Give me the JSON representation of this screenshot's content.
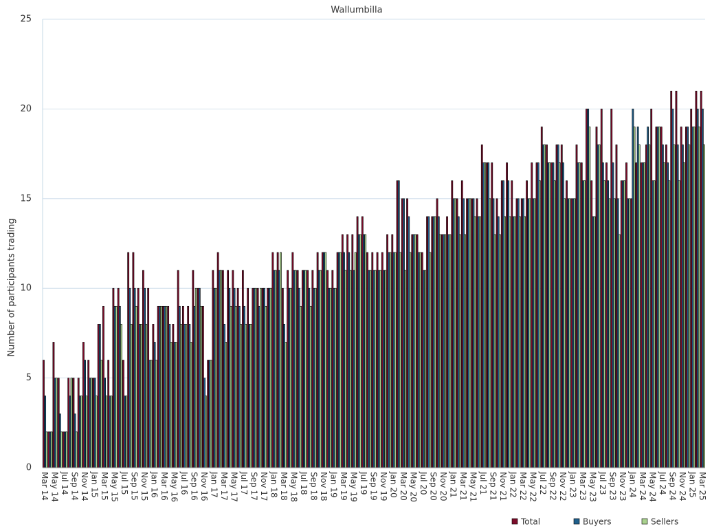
{
  "chart_data": {
    "type": "bar",
    "title": "Wallumbilla",
    "y_label": "Number of participants trading",
    "categories": [
      "Mar 14",
      null,
      "May 14",
      null,
      "Jul 14",
      null,
      "Sep 14",
      null,
      "Nov 14",
      null,
      "Jan 15",
      null,
      "Mar 15",
      null,
      "May 15",
      null,
      "Jul 15",
      null,
      "Sep 15",
      null,
      "Nov 15",
      null,
      "Jan 16",
      null,
      "Mar 16",
      null,
      "May 16",
      null,
      "Jul 16",
      null,
      "Sep 16",
      null,
      "Nov 16",
      null,
      "Jan 17",
      null,
      "Mar 17",
      null,
      "May 17",
      null,
      "Jul 17",
      null,
      "Sep 17",
      null,
      "Nov 17",
      null,
      "Jan 18",
      null,
      "Mar 18",
      null,
      "May 18",
      null,
      "Jul 18",
      null,
      "Sep 18",
      null,
      "Nov 18",
      null,
      "Jan 19",
      null,
      "Mar 19",
      null,
      "May 19",
      null,
      "Jul 19",
      null,
      "Sep 19",
      null,
      "Nov 19",
      null,
      "Jan 20",
      null,
      "Mar 20",
      null,
      "May 20",
      null,
      "Jul 20",
      null,
      "Sep 20",
      null,
      "Nov 20",
      null,
      "Jan 21",
      null,
      "Mar 21",
      null,
      "May 21",
      null,
      "Jul 21",
      null,
      "Sep 21",
      null,
      "Nov 21",
      null,
      "Jan 22",
      null,
      "Mar 22",
      null,
      "May 22",
      null,
      "Jul 22",
      null,
      "Sep 22",
      null,
      "Nov 22",
      null,
      "Jan 23",
      null,
      "Mar 23",
      null,
      "May 23",
      null,
      "Jul 23",
      null,
      "Sep 23",
      null,
      "Nov 23",
      null,
      "Jan 24",
      null,
      "Mar 24",
      null,
      "May 24",
      null,
      "Jul 24",
      null,
      "Sep 24",
      null,
      "Nov 24",
      null,
      "Jan 25",
      null,
      "Mar 25"
    ],
    "series": [
      {
        "name": "Total",
        "color": "#7b0c2a",
        "values": [
          6,
          2,
          7,
          5,
          2,
          5,
          5,
          5,
          7,
          6,
          5,
          8,
          9,
          6,
          10,
          10,
          6,
          12,
          12,
          10,
          11,
          10,
          8,
          9,
          9,
          9,
          8,
          11,
          9,
          9,
          11,
          10,
          9,
          6,
          11,
          12,
          11,
          11,
          11,
          10,
          11,
          10,
          10,
          10,
          10,
          10,
          12,
          12,
          10,
          11,
          12,
          11,
          11,
          11,
          11,
          12,
          12,
          11,
          11,
          12,
          13,
          13,
          13,
          14,
          14,
          12,
          12,
          12,
          12,
          13,
          13,
          16,
          15,
          15,
          13,
          13,
          12,
          14,
          14,
          15,
          13,
          14,
          16,
          15,
          16,
          15,
          15,
          15,
          18,
          17,
          17,
          15,
          16,
          17,
          16,
          15,
          15,
          16,
          17,
          17,
          19,
          18,
          17,
          18,
          18,
          16,
          15,
          18,
          17,
          20,
          16,
          19,
          20,
          17,
          20,
          18,
          16,
          17,
          15,
          17,
          17,
          18,
          20,
          19,
          19,
          18,
          21,
          21,
          19,
          19,
          20,
          21,
          21
        ]
      },
      {
        "name": "Buyers",
        "color": "#1f5f8b",
        "values": [
          4,
          2,
          5,
          3,
          2,
          4,
          3,
          4,
          6,
          5,
          5,
          8,
          5,
          4,
          9,
          9,
          4,
          10,
          10,
          8,
          10,
          6,
          7,
          9,
          9,
          8,
          7,
          9,
          8,
          8,
          9,
          10,
          5,
          6,
          10,
          11,
          8,
          10,
          10,
          9,
          9,
          8,
          10,
          9,
          10,
          10,
          11,
          11,
          8,
          10,
          11,
          10,
          11,
          10,
          10,
          11,
          12,
          10,
          10,
          12,
          12,
          12,
          11,
          13,
          13,
          11,
          11,
          11,
          11,
          12,
          12,
          16,
          15,
          14,
          13,
          12,
          11,
          14,
          14,
          14,
          13,
          13,
          15,
          14,
          15,
          15,
          15,
          14,
          17,
          17,
          15,
          14,
          16,
          16,
          14,
          15,
          15,
          15,
          15,
          17,
          18,
          17,
          17,
          18,
          17,
          15,
          15,
          17,
          16,
          20,
          14,
          18,
          17,
          16,
          17,
          15,
          16,
          15,
          20,
          19,
          17,
          19,
          16,
          19,
          18,
          17,
          20,
          18,
          18,
          19,
          19,
          20,
          20
        ]
      },
      {
        "name": "Sellers",
        "color": "#a9d18e",
        "values": [
          2,
          2,
          5,
          2,
          2,
          5,
          2,
          4,
          4,
          5,
          4,
          6,
          4,
          4,
          9,
          8,
          4,
          8,
          9,
          8,
          8,
          6,
          6,
          9,
          9,
          7,
          7,
          8,
          8,
          7,
          10,
          9,
          4,
          6,
          10,
          11,
          7,
          9,
          9,
          8,
          8,
          8,
          10,
          10,
          9,
          10,
          11,
          12,
          7,
          10,
          11,
          9,
          11,
          9,
          10,
          11,
          12,
          10,
          10,
          12,
          11,
          11,
          12,
          13,
          13,
          11,
          11,
          11,
          11,
          12,
          12,
          12,
          11,
          12,
          13,
          12,
          11,
          12,
          14,
          13,
          13,
          13,
          15,
          13,
          13,
          15,
          14,
          14,
          17,
          15,
          13,
          13,
          14,
          14,
          14,
          14,
          14,
          15,
          15,
          16,
          18,
          17,
          16,
          17,
          15,
          15,
          15,
          17,
          16,
          19,
          14,
          18,
          16,
          15,
          15,
          13,
          16,
          15,
          19,
          18,
          17,
          18,
          16,
          19,
          17,
          16,
          18,
          16,
          17,
          18,
          19,
          19,
          18
        ]
      }
    ],
    "ylim": [
      0,
      25
    ],
    "yticks": [
      0,
      5,
      10,
      15,
      20,
      25
    ],
    "grid": true,
    "legend": "bottom-right"
  }
}
